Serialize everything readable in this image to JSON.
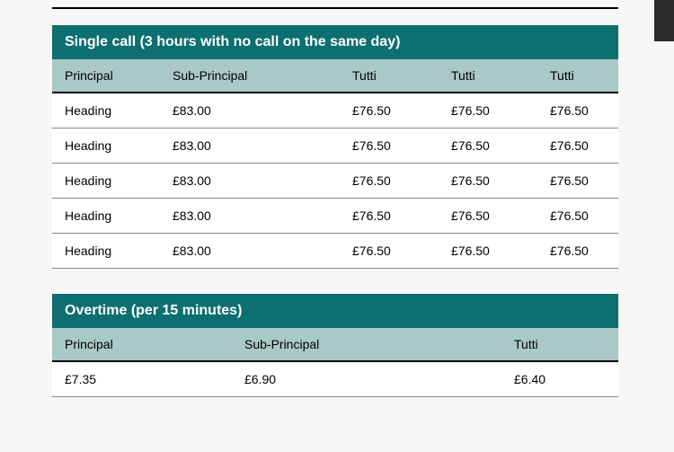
{
  "table1": {
    "title": "Single call (3 hours with no call on the same day)",
    "columns": [
      "Principal",
      "Sub-Principal",
      "Tutti",
      "Tutti",
      "Tutti"
    ],
    "rows": [
      [
        "Heading",
        "£83.00",
        "£76.50",
        "£76.50",
        "£76.50"
      ],
      [
        "Heading",
        "£83.00",
        "£76.50",
        "£76.50",
        "£76.50"
      ],
      [
        "Heading",
        "£83.00",
        "£76.50",
        "£76.50",
        "£76.50"
      ],
      [
        "Heading",
        "£83.00",
        "£76.50",
        "£76.50",
        "£76.50"
      ],
      [
        "Heading",
        "£83.00",
        "£76.50",
        "£76.50",
        "£76.50"
      ]
    ],
    "colors": {
      "title_bg": "#0d6f70",
      "title_fg": "#ffffff",
      "head_bg": "#a9c9c6",
      "head_fg": "#000000",
      "row_bg": "#ffffff",
      "row_fg": "#000000",
      "rule": "#000000",
      "divider": "#888888"
    }
  },
  "table2": {
    "title": "Overtime (per 15 minutes)",
    "columns": [
      "Principal",
      "Sub-Principal",
      "Tutti"
    ],
    "rows": [
      [
        "£7.35",
        "£6.90",
        "£6.40"
      ]
    ],
    "colors": {
      "title_bg": "#0d6f70",
      "title_fg": "#ffffff",
      "head_bg": "#a9c9c6",
      "head_fg": "#000000",
      "row_bg": "#ffffff",
      "row_fg": "#000000",
      "rule": "#000000",
      "divider": "#888888"
    }
  }
}
